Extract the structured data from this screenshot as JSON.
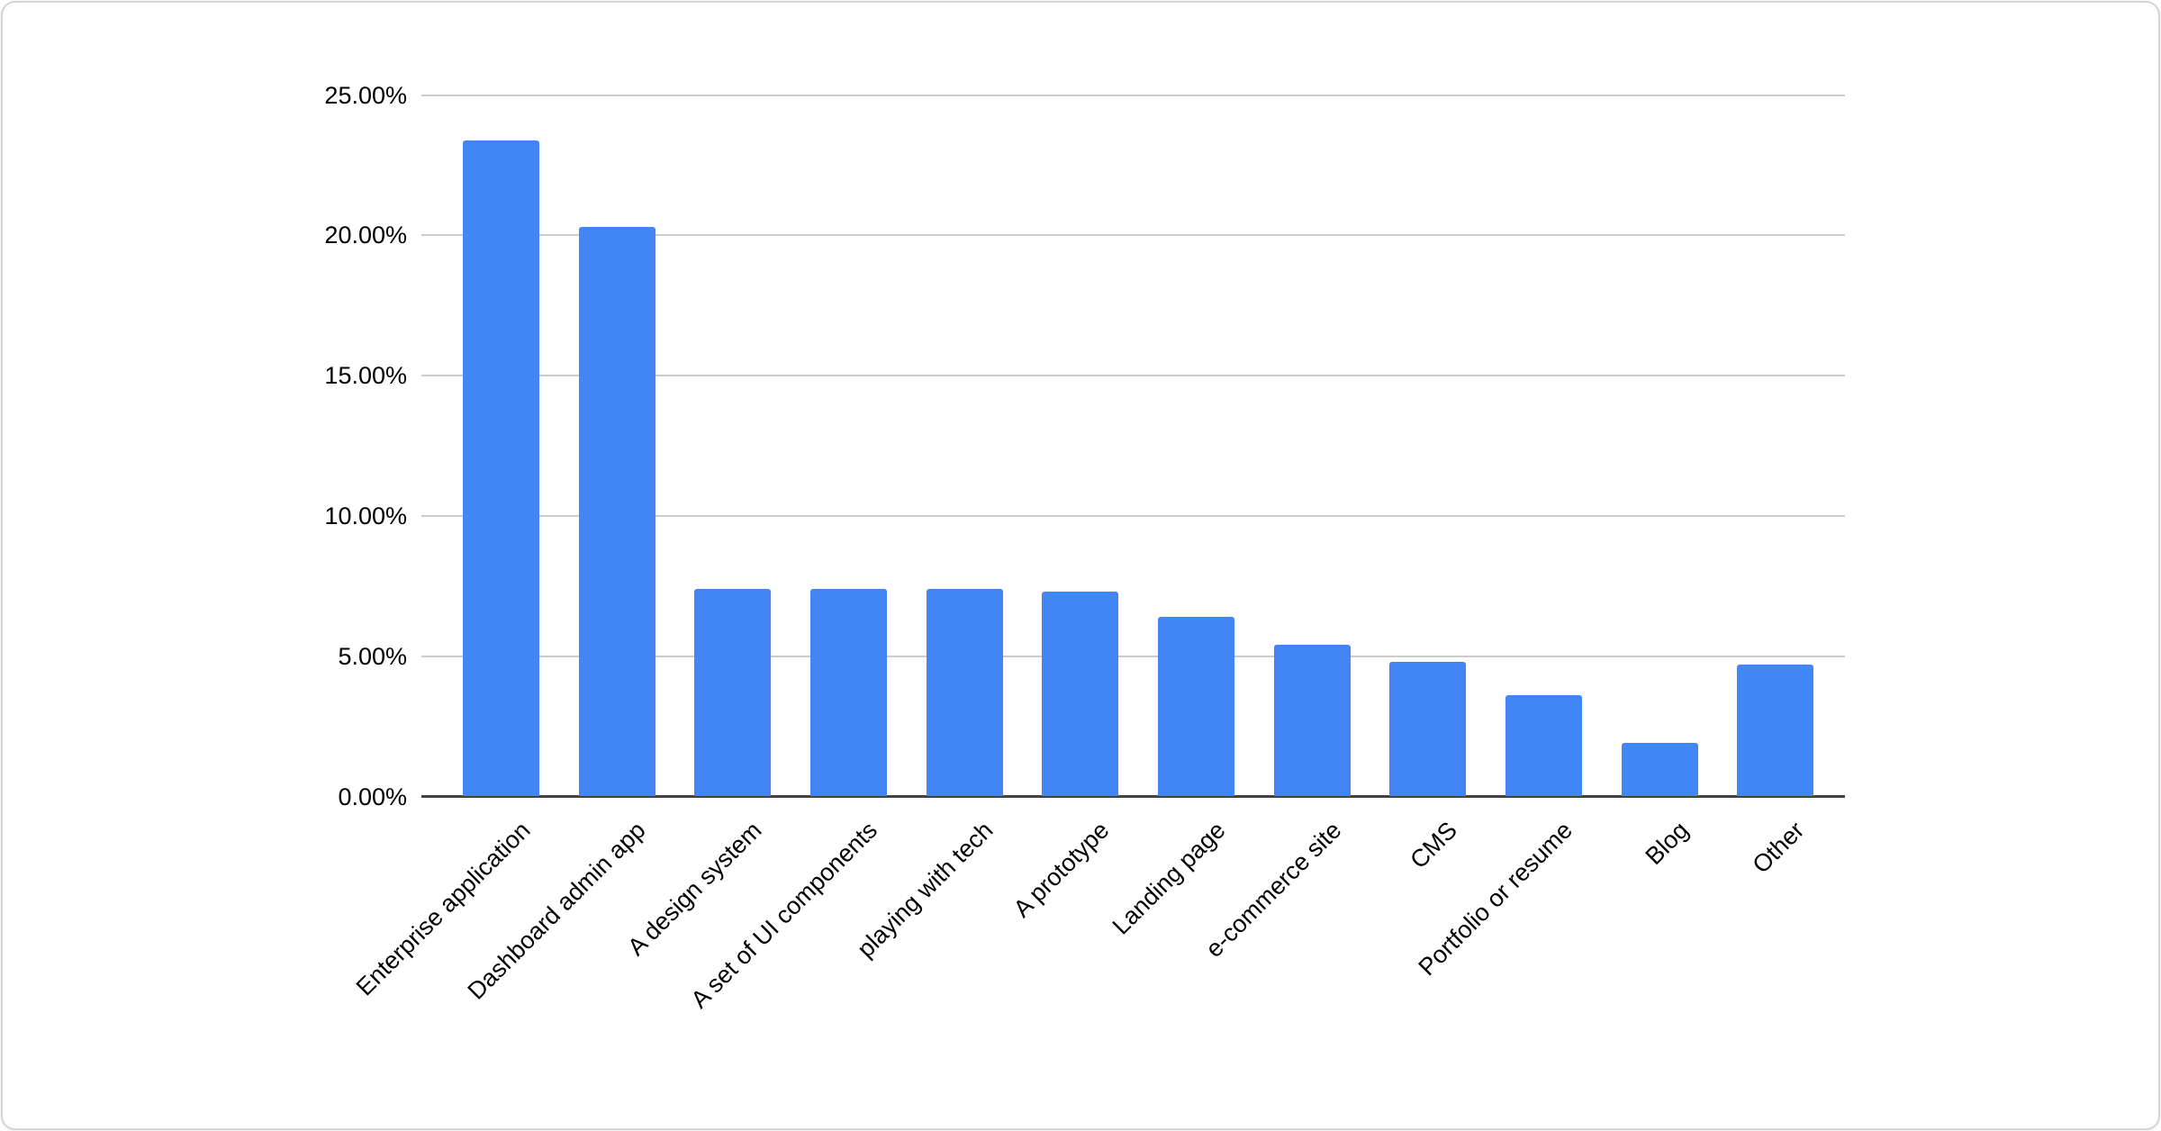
{
  "chart_data": {
    "type": "bar",
    "categories": [
      "Enterprise application",
      "Dashboard admin app",
      "A design system",
      "A set of UI components",
      "playing with tech",
      "A prototype",
      "Landing page",
      "e-commerce site",
      "CMS",
      "Portfolio or resume",
      "Blog",
      "Other"
    ],
    "values": [
      23.4,
      20.3,
      7.4,
      7.4,
      7.4,
      7.3,
      6.4,
      5.4,
      4.8,
      3.6,
      1.9,
      4.7
    ],
    "value_unit": "%",
    "y_ticks": [
      {
        "label": "25.00%",
        "value": 25
      },
      {
        "label": "20.00%",
        "value": 20
      },
      {
        "label": "15.00%",
        "value": 15
      },
      {
        "label": "10.00%",
        "value": 10
      },
      {
        "label": "5.00%",
        "value": 5
      },
      {
        "label": "0.00%",
        "value": 0
      }
    ],
    "ylim": [
      0,
      25
    ],
    "grid": true,
    "legend": "none",
    "x_label_rotation_deg": -45,
    "colors": {
      "bar": "#4285f4",
      "gridline": "#cccccc",
      "axis_line": "#424242",
      "label_text": "#000000",
      "card_border": "#d2d6da",
      "background": "#ffffff"
    }
  }
}
